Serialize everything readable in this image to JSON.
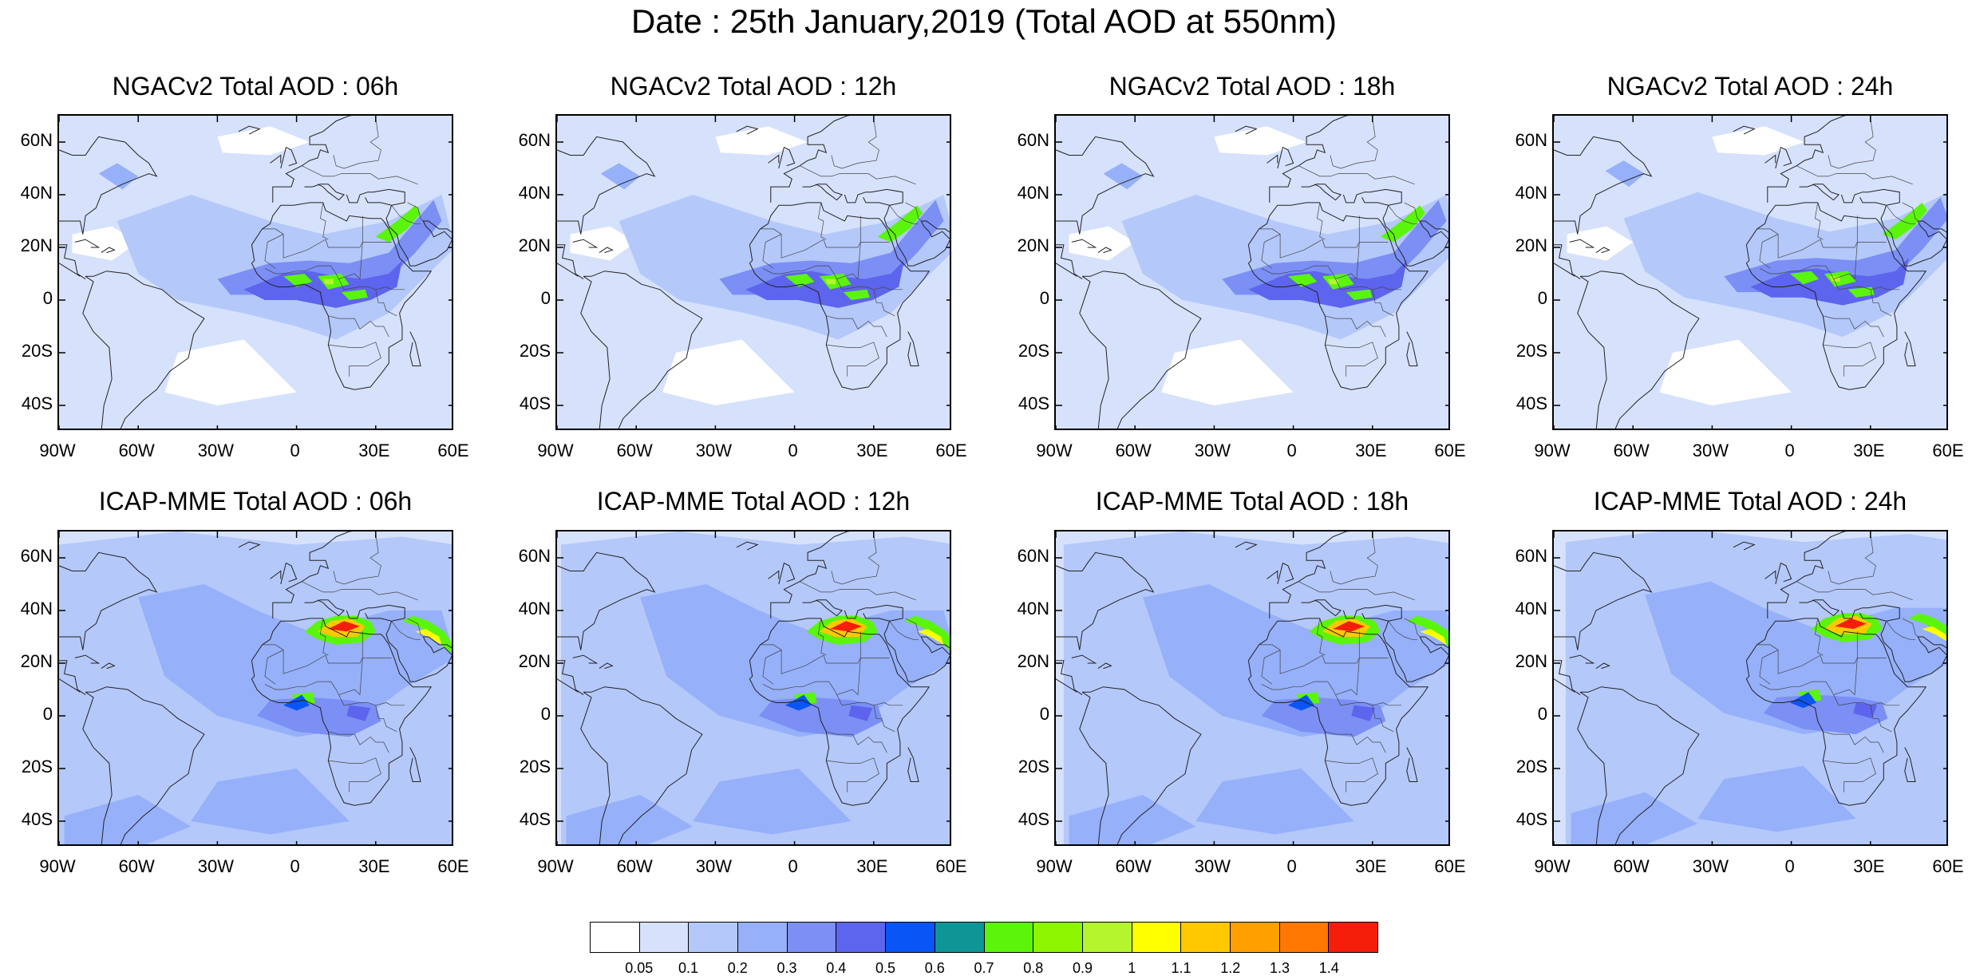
{
  "figure": {
    "title": "Date : 25th January,2019 (Total AOD at 550nm)"
  },
  "panels": [
    {
      "title": "NGACv2 Total AOD : 06h",
      "model": "NGACv2",
      "hour": "06h"
    },
    {
      "title": "NGACv2 Total AOD : 12h",
      "model": "NGACv2",
      "hour": "12h"
    },
    {
      "title": "NGACv2 Total AOD : 18h",
      "model": "NGACv2",
      "hour": "18h"
    },
    {
      "title": "NGACv2 Total AOD : 24h",
      "model": "NGACv2",
      "hour": "24h"
    },
    {
      "title": "ICAP-MME Total AOD : 06h",
      "model": "ICAP-MME",
      "hour": "06h"
    },
    {
      "title": "ICAP-MME Total AOD : 12h",
      "model": "ICAP-MME",
      "hour": "12h"
    },
    {
      "title": "ICAP-MME Total AOD : 18h",
      "model": "ICAP-MME",
      "hour": "18h"
    },
    {
      "title": "ICAP-MME Total AOD : 24h",
      "model": "ICAP-MME",
      "hour": "24h"
    }
  ],
  "axes": {
    "lon_labels": [
      "90W",
      "60W",
      "30W",
      "0",
      "30E",
      "60E"
    ],
    "lon_values": [
      -90,
      -60,
      -30,
      0,
      30,
      60
    ],
    "lat_labels": [
      "60N",
      "40N",
      "20N",
      "0",
      "20S",
      "40S"
    ],
    "lat_values": [
      60,
      40,
      20,
      0,
      -20,
      -40
    ],
    "lon_range": [
      -90,
      60
    ],
    "lat_range": [
      -50,
      70
    ]
  },
  "legend": {
    "tick_labels": [
      "0.05",
      "0.1",
      "0.2",
      "0.3",
      "0.4",
      "0.5",
      "0.6",
      "0.7",
      "0.8",
      "0.9",
      "1",
      "1.1",
      "1.2",
      "1.3",
      "1.4"
    ],
    "colors": [
      "#ffffff",
      "#d6e1fc",
      "#b4c8fa",
      "#96b0fa",
      "#7b8ff5",
      "#5d64ed",
      "#0a55f5",
      "#0e9696",
      "#5af50a",
      "#8cf500",
      "#b4f52d",
      "#ffff00",
      "#ffc800",
      "#ffa000",
      "#ff7800",
      "#f51e0a"
    ]
  }
}
